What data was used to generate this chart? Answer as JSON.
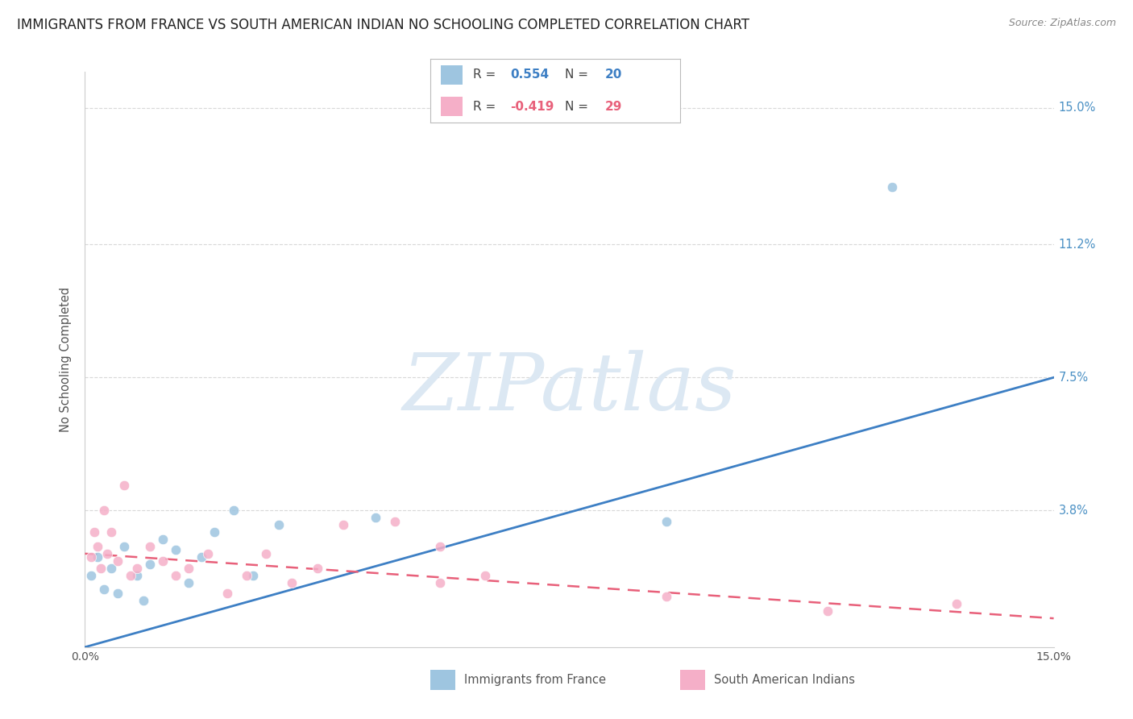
{
  "title": "IMMIGRANTS FROM FRANCE VS SOUTH AMERICAN INDIAN NO SCHOOLING COMPLETED CORRELATION CHART",
  "source": "Source: ZipAtlas.com",
  "ylabel": "No Schooling Completed",
  "xlim": [
    0,
    15
  ],
  "ylim": [
    0,
    16
  ],
  "ytick_vals": [
    3.8,
    7.5,
    11.2,
    15.0
  ],
  "blue_scatter_x": [
    0.1,
    0.2,
    0.3,
    0.4,
    0.5,
    0.6,
    0.8,
    0.9,
    1.0,
    1.2,
    1.4,
    1.6,
    1.8,
    2.0,
    2.3,
    2.6,
    3.0,
    4.5,
    9.0,
    12.5
  ],
  "blue_scatter_y": [
    2.0,
    2.5,
    1.6,
    2.2,
    1.5,
    2.8,
    2.0,
    1.3,
    2.3,
    3.0,
    2.7,
    1.8,
    2.5,
    3.2,
    3.8,
    2.0,
    3.4,
    3.6,
    3.5,
    12.8
  ],
  "pink_scatter_x": [
    0.1,
    0.15,
    0.2,
    0.25,
    0.3,
    0.35,
    0.4,
    0.5,
    0.6,
    0.7,
    0.8,
    1.0,
    1.2,
    1.4,
    1.6,
    1.9,
    2.2,
    2.5,
    2.8,
    3.2,
    3.6,
    4.0,
    4.8,
    5.5,
    5.5,
    6.2,
    9.0,
    11.5,
    13.5
  ],
  "pink_scatter_y": [
    2.5,
    3.2,
    2.8,
    2.2,
    3.8,
    2.6,
    3.2,
    2.4,
    4.5,
    2.0,
    2.2,
    2.8,
    2.4,
    2.0,
    2.2,
    2.6,
    1.5,
    2.0,
    2.6,
    1.8,
    2.2,
    3.4,
    3.5,
    2.8,
    1.8,
    2.0,
    1.4,
    1.0,
    1.2
  ],
  "blue_line_x": [
    0,
    15
  ],
  "blue_line_y": [
    0.0,
    7.5
  ],
  "pink_line_x": [
    0,
    15
  ],
  "pink_line_y": [
    2.6,
    0.8
  ],
  "blue_dot_color": "#9ec5e0",
  "pink_dot_color": "#f5afc8",
  "blue_line_color": "#3d7fc4",
  "pink_line_color": "#e8607a",
  "right_tick_color": "#4a90c4",
  "watermark_color": "#dce8f3",
  "grid_color": "#d8d8d8",
  "title_color": "#222222",
  "source_color": "#888888",
  "bg_color": "#ffffff",
  "legend_r1": "R =  0.554   N = 20",
  "legend_r1_r_val": "0.554",
  "legend_r1_n_val": "20",
  "legend_r2_r_val": "-0.419",
  "legend_r2_n_val": "29",
  "bottom_label1": "Immigrants from France",
  "bottom_label2": "South American Indians"
}
